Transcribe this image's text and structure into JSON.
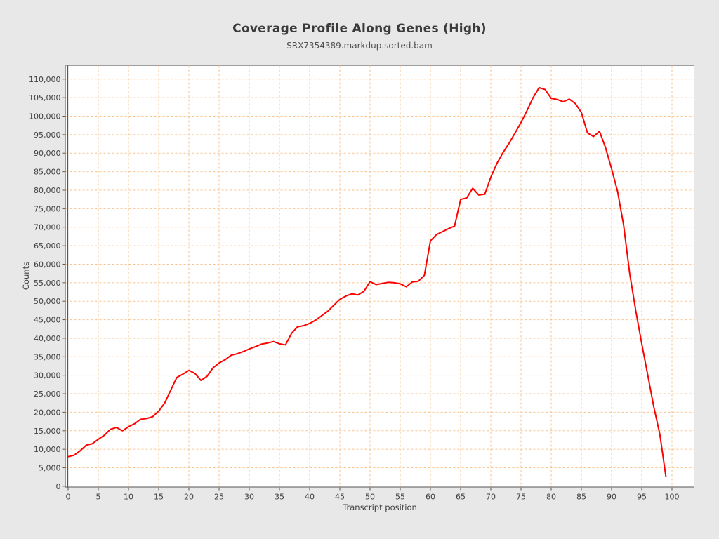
{
  "header": {
    "title": "Coverage Profile Along Genes (High)",
    "subtitle": "SRX7354389.markdup.sorted.bam"
  },
  "colors": {
    "page_background": "#e8e8e8",
    "plot_background": "#ffffff",
    "grid": "#f9c28e",
    "plot_border": "#9e9e9e",
    "axis": "#555555",
    "series": "#ff0000",
    "text": "#404040"
  },
  "chart_data": {
    "type": "line",
    "title": "Coverage Profile Along Genes (High)",
    "subtitle": "SRX7354389.markdup.sorted.bam",
    "xlabel": "Transcript position",
    "ylabel": "Counts",
    "legend": null,
    "grid": "dashed",
    "xlim": [
      0,
      103.6
    ],
    "ylim": [
      0,
      113500
    ],
    "xticks": [
      0,
      5,
      10,
      15,
      20,
      25,
      30,
      35,
      40,
      45,
      50,
      55,
      60,
      65,
      70,
      75,
      80,
      85,
      90,
      95,
      100
    ],
    "yticks": [
      0,
      5000,
      10000,
      15000,
      20000,
      25000,
      30000,
      35000,
      40000,
      45000,
      50000,
      55000,
      60000,
      65000,
      70000,
      75000,
      80000,
      85000,
      90000,
      95000,
      100000,
      105000,
      110000
    ],
    "x": [
      0,
      1,
      2,
      3,
      4,
      5,
      6,
      7,
      8,
      9,
      10,
      11,
      12,
      13,
      14,
      15,
      16,
      17,
      18,
      19,
      20,
      21,
      22,
      23,
      24,
      25,
      26,
      27,
      28,
      29,
      30,
      31,
      32,
      33,
      34,
      35,
      36,
      37,
      38,
      39,
      40,
      41,
      42,
      43,
      44,
      45,
      46,
      47,
      48,
      49,
      50,
      51,
      52,
      53,
      54,
      55,
      56,
      57,
      58,
      59,
      60,
      61,
      62,
      63,
      64,
      65,
      66,
      67,
      68,
      69,
      70,
      71,
      72,
      73,
      74,
      75,
      76,
      77,
      78,
      79,
      80,
      81,
      82,
      83,
      84,
      85,
      86,
      87,
      88,
      89,
      90,
      91,
      92,
      93,
      94,
      95,
      96,
      97,
      98,
      99
    ],
    "values": [
      8000,
      8400,
      9600,
      11100,
      11500,
      12700,
      13800,
      15400,
      15900,
      15000,
      16100,
      16900,
      18100,
      18300,
      18800,
      20300,
      22500,
      26000,
      29400,
      30300,
      31300,
      30500,
      28600,
      29700,
      32000,
      33300,
      34200,
      35400,
      35800,
      36400,
      37100,
      37700,
      38400,
      38700,
      39100,
      38500,
      38200,
      41300,
      43100,
      43400,
      44000,
      44900,
      46100,
      47300,
      48900,
      50500,
      51400,
      52000,
      51700,
      52700,
      55300,
      54500,
      54800,
      55100,
      55000,
      54700,
      53900,
      55200,
      55400,
      57000,
      66300,
      68000,
      68800,
      69600,
      70300,
      77500,
      77900,
      80500,
      78700,
      78900,
      83500,
      87200,
      90100,
      92600,
      95400,
      98300,
      101500,
      105000,
      107700,
      107200,
      104800,
      104500,
      103900,
      104600,
      103400,
      101000,
      95500,
      94500,
      95900,
      91500,
      85800,
      79600,
      70500,
      57500,
      47500,
      38500,
      30000,
      21400,
      14000,
      2600
    ]
  }
}
